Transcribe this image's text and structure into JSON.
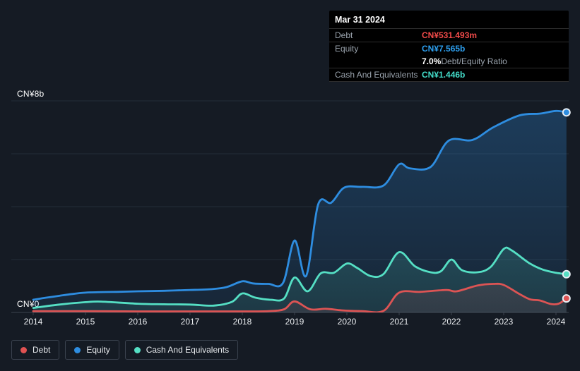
{
  "page": {
    "background": "#151b24"
  },
  "y_axis": {
    "top_label": "CN¥8b",
    "zero_label": "CN¥0"
  },
  "x_axis": {
    "ticks": [
      "2014",
      "2015",
      "2016",
      "2017",
      "2018",
      "2019",
      "2020",
      "2021",
      "2022",
      "2023",
      "2024"
    ]
  },
  "tooltip": {
    "date": "Mar 31 2024",
    "rows": [
      {
        "label": "Debt",
        "value": "CN¥531.493m",
        "value_color": "#ef4a49",
        "suffix": "",
        "divider": true
      },
      {
        "label": "Equity",
        "value": "CN¥7.565b",
        "value_color": "#2d9fef",
        "suffix": "",
        "divider": true
      },
      {
        "label": "",
        "value": "7.0%",
        "value_color": "#ffffff",
        "suffix": " Debt/Equity Ratio",
        "divider": false
      },
      {
        "label": "Cash And Equivalents",
        "value": "CN¥1.446b",
        "value_color": "#43dcc9",
        "suffix": "",
        "divider": true
      }
    ]
  },
  "legend": {
    "items": [
      {
        "label": "Debt",
        "color": "#e05252"
      },
      {
        "label": "Equity",
        "color": "#2e8de0"
      },
      {
        "label": "Cash And Equivalents",
        "color": "#55dfc4"
      }
    ]
  },
  "chart_data": {
    "type": "area",
    "title": "",
    "xlabel": "",
    "ylabel": "CN¥ (billions)",
    "ylim": [
      0,
      8
    ],
    "y_gridline_values": [
      0,
      2,
      4,
      6,
      8
    ],
    "x_ticks": [
      2014,
      2015,
      2016,
      2017,
      2018,
      2019,
      2020,
      2021,
      2022,
      2023,
      2024
    ],
    "x_range": [
      2014,
      2024.25
    ],
    "legend_position": "bottom",
    "grid": true,
    "series": [
      {
        "name": "Equity",
        "color": "#2e8de0",
        "points": [
          [
            2014.0,
            0.48
          ],
          [
            2014.25,
            0.56
          ],
          [
            2014.5,
            0.63
          ],
          [
            2014.75,
            0.7
          ],
          [
            2015.0,
            0.75
          ],
          [
            2015.3,
            0.77
          ],
          [
            2015.6,
            0.78
          ],
          [
            2016.0,
            0.8
          ],
          [
            2016.5,
            0.82
          ],
          [
            2017.0,
            0.85
          ],
          [
            2017.4,
            0.88
          ],
          [
            2017.7,
            0.96
          ],
          [
            2018.0,
            1.18
          ],
          [
            2018.2,
            1.1
          ],
          [
            2018.5,
            1.08
          ],
          [
            2018.78,
            1.12
          ],
          [
            2019.0,
            2.72
          ],
          [
            2019.22,
            1.38
          ],
          [
            2019.45,
            4.08
          ],
          [
            2019.7,
            4.15
          ],
          [
            2019.95,
            4.72
          ],
          [
            2020.3,
            4.75
          ],
          [
            2020.7,
            4.8
          ],
          [
            2021.0,
            5.6
          ],
          [
            2021.2,
            5.45
          ],
          [
            2021.6,
            5.5
          ],
          [
            2021.95,
            6.5
          ],
          [
            2022.4,
            6.52
          ],
          [
            2022.8,
            7.0
          ],
          [
            2023.3,
            7.45
          ],
          [
            2023.7,
            7.52
          ],
          [
            2024.0,
            7.62
          ],
          [
            2024.2,
            7.565
          ]
        ]
      },
      {
        "name": "Cash And Equivalents",
        "color": "#55dfc4",
        "points": [
          [
            2014.0,
            0.17
          ],
          [
            2014.5,
            0.3
          ],
          [
            2015.0,
            0.39
          ],
          [
            2015.3,
            0.41
          ],
          [
            2016.0,
            0.33
          ],
          [
            2016.5,
            0.31
          ],
          [
            2017.0,
            0.3
          ],
          [
            2017.45,
            0.26
          ],
          [
            2017.8,
            0.4
          ],
          [
            2018.0,
            0.72
          ],
          [
            2018.25,
            0.56
          ],
          [
            2018.55,
            0.48
          ],
          [
            2018.8,
            0.53
          ],
          [
            2019.0,
            1.32
          ],
          [
            2019.25,
            0.8
          ],
          [
            2019.5,
            1.48
          ],
          [
            2019.75,
            1.5
          ],
          [
            2020.0,
            1.85
          ],
          [
            2020.2,
            1.68
          ],
          [
            2020.45,
            1.38
          ],
          [
            2020.7,
            1.45
          ],
          [
            2021.0,
            2.28
          ],
          [
            2021.3,
            1.75
          ],
          [
            2021.6,
            1.52
          ],
          [
            2021.8,
            1.56
          ],
          [
            2022.0,
            2.0
          ],
          [
            2022.2,
            1.6
          ],
          [
            2022.5,
            1.52
          ],
          [
            2022.75,
            1.72
          ],
          [
            2023.0,
            2.4
          ],
          [
            2023.15,
            2.35
          ],
          [
            2023.5,
            1.85
          ],
          [
            2023.75,
            1.62
          ],
          [
            2024.0,
            1.5
          ],
          [
            2024.2,
            1.446
          ]
        ]
      },
      {
        "name": "Debt",
        "color": "#dd5454",
        "points": [
          [
            2014.0,
            0.05
          ],
          [
            2015.0,
            0.05
          ],
          [
            2016.0,
            0.04
          ],
          [
            2017.0,
            0.04
          ],
          [
            2018.0,
            0.04
          ],
          [
            2018.5,
            0.05
          ],
          [
            2018.8,
            0.12
          ],
          [
            2019.0,
            0.42
          ],
          [
            2019.3,
            0.12
          ],
          [
            2019.6,
            0.14
          ],
          [
            2019.9,
            0.08
          ],
          [
            2020.3,
            0.05
          ],
          [
            2020.7,
            0.06
          ],
          [
            2021.0,
            0.75
          ],
          [
            2021.4,
            0.78
          ],
          [
            2021.9,
            0.85
          ],
          [
            2022.1,
            0.8
          ],
          [
            2022.5,
            1.02
          ],
          [
            2022.8,
            1.08
          ],
          [
            2023.0,
            1.04
          ],
          [
            2023.3,
            0.7
          ],
          [
            2023.5,
            0.5
          ],
          [
            2023.7,
            0.45
          ],
          [
            2023.9,
            0.32
          ],
          [
            2024.05,
            0.33
          ],
          [
            2024.2,
            0.531
          ]
        ]
      }
    ]
  }
}
